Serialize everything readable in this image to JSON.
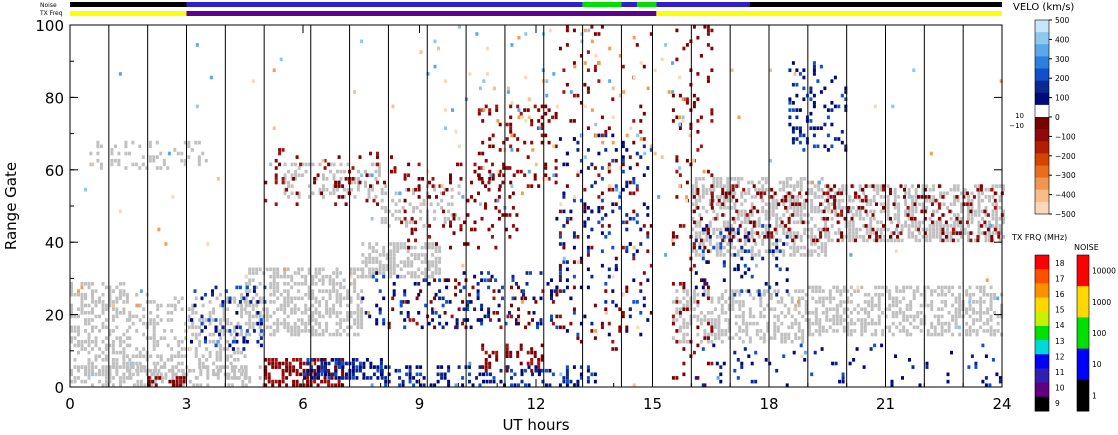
{
  "status_bars": {
    "noise_label": "Noise",
    "txfreq_label": "TX Freq"
  },
  "chart_data": {
    "type": "heatmap",
    "title": "",
    "xlabel": "UT hours",
    "ylabel": "Range Gate",
    "xlim": [
      0,
      24
    ],
    "ylim": [
      0,
      100
    ],
    "x_ticks": [
      "0",
      "3",
      "6",
      "9",
      "12",
      "15",
      "18",
      "21",
      "24"
    ],
    "y_ticks": [
      "0",
      "20",
      "40",
      "60",
      "80",
      "100"
    ],
    "vertical_scan_lines": true,
    "ground_scatter_color": "#c0c0c0",
    "velocity_scale": {
      "title": "VELO (km/s)",
      "ticks": [
        "500",
        "400",
        "300",
        "200",
        "100",
        "0",
        "−100",
        "−200",
        "−300",
        "−400",
        "−500"
      ],
      "side_labels": [
        "10",
        "−10"
      ],
      "colors": [
        "#c8e6f8",
        "#8cc8f0",
        "#5aa8e8",
        "#2e7ee0",
        "#1050c8",
        "#0a2890",
        "#000a78",
        "#ffffff",
        "#780000",
        "#900a0a",
        "#b41e00",
        "#d24600",
        "#e86e1e",
        "#f09650",
        "#f8bc88",
        "#fcd8b8"
      ]
    },
    "txfreq_scale": {
      "title": "TX FRQ (MHz)",
      "ticks": [
        "18",
        "17",
        "16",
        "15",
        "14",
        "13",
        "12",
        "11",
        "10",
        "9"
      ],
      "colors": [
        "#ff0000",
        "#ff5000",
        "#ff9000",
        "#ffd800",
        "#c8f000",
        "#00e000",
        "#00d8d8",
        "#0000ff",
        "#3020b0",
        "#600080",
        "#000000"
      ]
    },
    "noise_scale": {
      "title": "NOISE",
      "ticks": [
        "10000",
        "1000",
        "100",
        "10",
        "1"
      ],
      "colors": [
        "#ff0000",
        "#ffd800",
        "#00e000",
        "#0000ff",
        "#000000"
      ]
    },
    "noise_timeline": [
      {
        "start": 0,
        "end": 3,
        "color": "#000000"
      },
      {
        "start": 3,
        "end": 13.2,
        "color": "#3020c8"
      },
      {
        "start": 13.2,
        "end": 14.2,
        "color": "#00e000"
      },
      {
        "start": 14.2,
        "end": 14.6,
        "color": "#3020c8"
      },
      {
        "start": 14.6,
        "end": 15.1,
        "color": "#00e000"
      },
      {
        "start": 15.1,
        "end": 17.5,
        "color": "#3020c8"
      },
      {
        "start": 17.5,
        "end": 24,
        "color": "#000000"
      }
    ],
    "txfreq_timeline": [
      {
        "start": 0,
        "end": 3,
        "color": "#ffff00"
      },
      {
        "start": 3,
        "end": 15.1,
        "color": "#600090"
      },
      {
        "start": 15.1,
        "end": 24,
        "color": "#ffff00"
      }
    ],
    "features": [
      {
        "kind": "ground",
        "x_start": 0,
        "x_end": 1.5,
        "g_low": 3,
        "g_high": 29,
        "density": 0.45
      },
      {
        "kind": "ground",
        "x_start": 1.5,
        "x_end": 4.5,
        "g_low": 2,
        "g_high": 26,
        "density": 0.35
      },
      {
        "kind": "ground",
        "x_start": 4.5,
        "x_end": 7.5,
        "g_low": 14,
        "g_high": 33,
        "density": 0.5
      },
      {
        "kind": "ground",
        "x_start": 7.5,
        "x_end": 9.5,
        "g_low": 30,
        "g_high": 40,
        "density": 0.55
      },
      {
        "kind": "ground",
        "x_start": 0.5,
        "x_end": 3.5,
        "g_low": 60,
        "g_high": 68,
        "density": 0.2
      },
      {
        "kind": "ground",
        "x_start": 5.5,
        "x_end": 8,
        "g_low": 52,
        "g_high": 62,
        "density": 0.3
      },
      {
        "kind": "ground",
        "x_start": 8,
        "x_end": 10,
        "g_low": 44,
        "g_high": 56,
        "density": 0.25
      },
      {
        "kind": "ground",
        "x_start": 16,
        "x_end": 19.5,
        "g_low": 36,
        "g_high": 58,
        "density": 0.5
      },
      {
        "kind": "ground",
        "x_start": 19.5,
        "x_end": 24,
        "g_low": 40,
        "g_high": 56,
        "density": 0.5
      },
      {
        "kind": "ground",
        "x_start": 15.5,
        "x_end": 19,
        "g_low": 12,
        "g_high": 27,
        "density": 0.45
      },
      {
        "kind": "ground",
        "x_start": 19,
        "x_end": 24,
        "g_low": 14,
        "g_high": 28,
        "density": 0.5
      },
      {
        "kind": "ground",
        "x_start": 0,
        "x_end": 5,
        "g_low": 0,
        "g_high": 6,
        "density": 0.5
      },
      {
        "kind": "neg",
        "x_start": 5,
        "x_end": 8.5,
        "g_low": 50,
        "g_high": 66,
        "density": 0.12
      },
      {
        "kind": "neg",
        "x_start": 8.5,
        "x_end": 11.5,
        "g_low": 38,
        "g_high": 62,
        "density": 0.12
      },
      {
        "kind": "neg",
        "x_start": 10.5,
        "x_end": 12.5,
        "g_low": 55,
        "g_high": 78,
        "density": 0.18
      },
      {
        "kind": "neg",
        "x_start": 16.5,
        "x_end": 24,
        "g_low": 40,
        "g_high": 56,
        "density": 0.15
      },
      {
        "kind": "neg",
        "x_start": 8,
        "x_end": 13,
        "g_low": 16,
        "g_high": 30,
        "density": 0.1
      },
      {
        "kind": "neg",
        "x_start": 5,
        "x_end": 7,
        "g_low": 0,
        "g_high": 8,
        "density": 0.55
      },
      {
        "kind": "neg",
        "x_start": 10.5,
        "x_end": 12.2,
        "g_low": 4,
        "g_high": 12,
        "density": 0.3
      },
      {
        "kind": "neg",
        "x_start": 2,
        "x_end": 3,
        "g_low": 0,
        "g_high": 3,
        "density": 0.5
      },
      {
        "kind": "neg",
        "x_start": 15.5,
        "x_end": 16.5,
        "g_low": 0,
        "g_high": 100,
        "density": 0.1
      },
      {
        "kind": "neg",
        "x_start": 12.5,
        "x_end": 15,
        "g_low": 10,
        "g_high": 100,
        "density": 0.05
      },
      {
        "kind": "pos",
        "x_start": 8,
        "x_end": 13.5,
        "g_low": 0,
        "g_high": 6,
        "density": 0.35
      },
      {
        "kind": "pos",
        "x_start": 6,
        "x_end": 8,
        "g_low": 2,
        "g_high": 8,
        "density": 0.6
      },
      {
        "kind": "pos",
        "x_start": 7.5,
        "x_end": 12.5,
        "g_low": 16,
        "g_high": 32,
        "density": 0.15
      },
      {
        "kind": "pos",
        "x_start": 12.5,
        "x_end": 15,
        "g_low": 14,
        "g_high": 70,
        "density": 0.1
      },
      {
        "kind": "pos",
        "x_start": 3,
        "x_end": 5,
        "g_low": 10,
        "g_high": 28,
        "density": 0.15
      },
      {
        "kind": "pos",
        "x_start": 16,
        "x_end": 18.5,
        "g_low": 25,
        "g_high": 45,
        "density": 0.12
      },
      {
        "kind": "pos",
        "x_start": 18.5,
        "x_end": 20,
        "g_low": 65,
        "g_high": 90,
        "density": 0.25
      },
      {
        "kind": "pos",
        "x_start": 16,
        "x_end": 24,
        "g_low": 0,
        "g_high": 12,
        "density": 0.06
      },
      {
        "kind": "light",
        "x_start": 9,
        "x_end": 16,
        "g_low": 50,
        "g_high": 100,
        "density": 0.03
      },
      {
        "kind": "light",
        "x_start": 0,
        "x_end": 24,
        "g_low": 0,
        "g_high": 100,
        "density": 0.005
      }
    ]
  }
}
